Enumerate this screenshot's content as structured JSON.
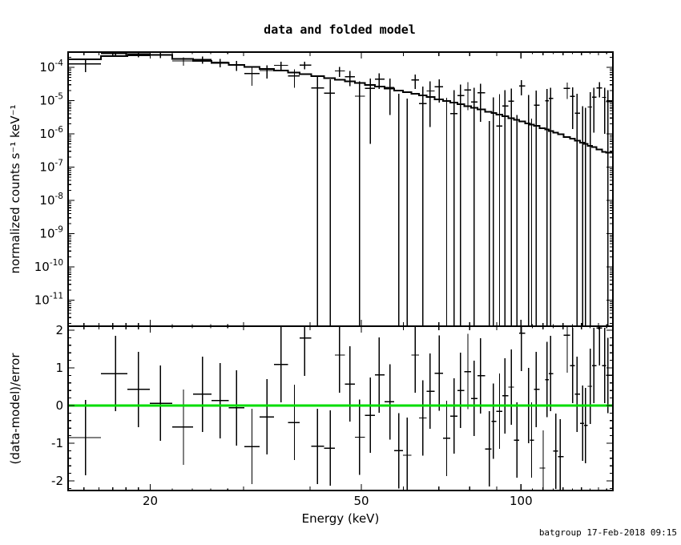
{
  "title": "data and folded model",
  "watermark": "batgroup 17-Feb-2018 09:15",
  "colors": {
    "foreground": "#000000",
    "background": "#ffffff",
    "zero_line_green": "#00dd00"
  },
  "axes": {
    "x": {
      "label": "Energy (keV)",
      "scale": "log",
      "min": 14.0,
      "max": 149.0,
      "major_ticks": [
        20,
        50,
        100
      ],
      "tick_labels": [
        "20",
        "50",
        "100"
      ]
    },
    "y_top": {
      "label": "normalized counts s⁻¹ keV⁻¹",
      "scale": "log",
      "min": 1.6e-12,
      "max": 0.00029,
      "decade_ticks": [
        -4,
        -5,
        -6,
        -7,
        -8,
        -9,
        -10,
        -11
      ],
      "tick_mantissa": "10",
      "tick_exponents": [
        "-4",
        "-5",
        "-6",
        "-7",
        "-8",
        "-9",
        "-10",
        "-11"
      ]
    },
    "y_bottom": {
      "label": "(data-model)/error",
      "scale": "linear",
      "min": -2.25,
      "max": 2.11,
      "major_ticks": [
        2,
        1,
        0,
        -1,
        -2
      ],
      "tick_labels": [
        "2",
        "1",
        "0",
        "-1",
        "-2"
      ],
      "zero_line": 0
    }
  },
  "chart_data": {
    "type": "scatter",
    "title": "data and folded model",
    "xlabel": "Energy (keV)",
    "ylabel_top": "normalized counts s^-1 keV^-1",
    "ylabel_bottom": "(data-model)/error",
    "xlim": [
      14.0,
      149.0
    ],
    "ylim_top": [
      1.6e-12,
      0.00029
    ],
    "ylim_bottom": [
      -2.25,
      2.11
    ],
    "grid": false,
    "legend_position": "none",
    "x_keV": [
      15.1,
      17.2,
      19.0,
      20.9,
      23.1,
      25.1,
      27.1,
      29.1,
      31.1,
      33.2,
      35.3,
      37.4,
      39.1,
      41.3,
      43.7,
      45.5,
      47.6,
      49.6,
      52.0,
      54.0,
      56.6,
      58.8,
      61.0,
      63.2,
      65.3,
      67.4,
      70.1,
      72.4,
      74.8,
      76.9,
      79.4,
      81.6,
      83.9,
      87.1,
      88.7,
      91.1,
      93.3,
      95.9,
      98.2,
      100.2,
      103.3,
      104.7,
      106.8,
      110.1,
      111.9,
      113.7,
      116.3,
      118.6,
      122.2,
      125.1,
      127.6,
      130.6,
      132.3,
      135.0,
      137.2,
      140.5,
      143.8,
      145.7
    ],
    "series": [
      {
        "name": "data rate (counts s^-1 keV^-1)",
        "panel": "top",
        "style": "cross-with-errors",
        "values": [
          0.000128,
          0.00026,
          0.000252,
          0.000238,
          0.000156,
          0.00017,
          0.000141,
          0.000117,
          6.44e-05,
          8.03e-05,
          0.000115,
          5.56e-05,
          0.000116,
          2.39e-05,
          1.68e-05,
          7.79e-05,
          5.22e-05,
          1.36e-05,
          2.35e-05,
          4.44e-05,
          2.49e-05,
          -4.3e-06,
          -8.1e-06,
          4.14e-05,
          8.1e-06,
          1.95e-05,
          2.59e-05,
          -4.8e-06,
          4.1e-06,
          1.41e-05,
          2.07e-05,
          9e-06,
          1.71e-05,
          -1.2e-05,
          -1.7e-06,
          1.7e-06,
          6.9e-06,
          9.6e-06,
          -9.6e-06,
          2.75e-05,
          2e-06,
          -9.9e-06,
          7.2e-06,
          -1.93e-05,
          9.9e-06,
          1.17e-05,
          -1.37e-05,
          -1.55e-05,
          2.32e-05,
          1.33e-05,
          4.2e-06,
          -5e-06,
          -5.7e-06,
          6.4e-06,
          1.27e-05,
          2.4e-05,
          1.25e-05,
          9.4e-06
        ]
      },
      {
        "name": "data 1-sigma error (counts s^-1 keV^-1)",
        "panel": "top",
        "style": "error-half-length",
        "values": [
          5.58e-05,
          5.26e-05,
          5e-05,
          4.75e-05,
          4.47e-05,
          4.24e-05,
          4.02e-05,
          3.82e-05,
          3.63e-05,
          3.45e-05,
          3.28e-05,
          3.12e-05,
          3e-05,
          2.86e-05,
          2.72e-05,
          2.62e-05,
          2.51e-05,
          2.41e-05,
          2.3e-05,
          2.22e-05,
          2.12e-05,
          2.04e-05,
          1.97e-05,
          1.9e-05,
          1.85e-05,
          1.79e-05,
          1.73e-05,
          1.68e-05,
          1.63e-05,
          1.59e-05,
          1.55e-05,
          1.52e-05,
          1.48e-05,
          1.44e-05,
          1.42e-05,
          1.4e-05,
          1.37e-05,
          1.35e-05,
          1.33e-05,
          1.31e-05,
          1.29e-05,
          1.28e-05,
          1.27e-05,
          1.25e-05,
          1.24e-05,
          1.23e-05,
          1.22e-05,
          1.21e-05,
          1.2e-05,
          1.19e-05,
          1.18e-05,
          1.17e-05,
          1.17e-05,
          1.16e-05,
          1.16e-05,
          1.15e-05,
          1.15e-05,
          1.14e-05
        ]
      },
      {
        "name": "folded model (counts s^-1 keV^-1)",
        "panel": "top",
        "style": "stepped-histogram-line",
        "values": [
          0.000175,
          0.000215,
          0.00023,
          0.000235,
          0.000181,
          0.000157,
          0.000136,
          0.000119,
          0.000104,
          9.06e-05,
          7.93e-05,
          6.96e-05,
          6.26e-05,
          5.48e-05,
          4.75e-05,
          4.28e-05,
          3.79e-05,
          3.38e-05,
          2.95e-05,
          2.64e-05,
          2.28e-05,
          2.02e-05,
          1.79e-05,
          1.59e-05,
          1.42e-05,
          1.27e-05,
          1.1e-05,
          9.77e-06,
          8.62e-06,
          7.72e-06,
          6.79e-06,
          6.07e-06,
          5.39e-06,
          4.58e-06,
          4.23e-06,
          3.75e-06,
          3.35e-06,
          2.95e-06,
          2.63e-06,
          2.38e-06,
          2.04e-06,
          1.9e-06,
          1.72e-06,
          1.46e-06,
          1.34e-06,
          1.22e-06,
          1.08e-06,
          9.7e-07,
          8.1e-07,
          7.1e-07,
          6.3e-07,
          5.4e-07,
          5e-07,
          4.4e-07,
          4e-07,
          3.4e-07,
          2.9e-07,
          2.7e-07
        ]
      },
      {
        "name": "(data-model)/error residuals",
        "panel": "bottom",
        "style": "cross-with-unit-errors",
        "error_half_length": 1.0,
        "values": [
          -0.85,
          0.85,
          0.43,
          0.06,
          -0.57,
          0.3,
          0.13,
          -0.06,
          -1.09,
          -0.3,
          1.09,
          -0.45,
          1.79,
          -1.08,
          -1.13,
          1.34,
          0.57,
          -0.84,
          -0.26,
          0.81,
          0.1,
          -1.2,
          -1.32,
          1.34,
          -0.33,
          0.38,
          0.86,
          -0.87,
          -0.28,
          0.4,
          0.9,
          0.19,
          0.79,
          -1.15,
          -0.42,
          -0.15,
          0.26,
          0.49,
          -0.92,
          1.92,
          0.0,
          -0.92,
          0.43,
          -1.66,
          0.69,
          0.85,
          -1.21,
          -1.36,
          1.87,
          1.06,
          0.3,
          -0.47,
          -0.53,
          0.51,
          1.06,
          2.06,
          1.06,
          0.8
        ]
      }
    ]
  }
}
